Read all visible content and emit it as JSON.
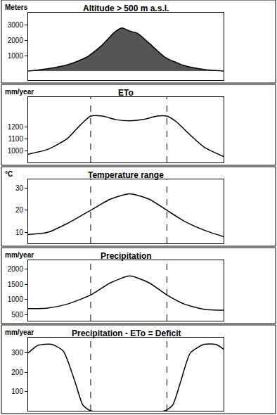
{
  "chart_data": [
    {
      "type": "area",
      "title": "Altitude > 500 m a.s.l.",
      "ylabel": "Meters",
      "x": [
        0,
        10,
        20,
        30,
        38,
        44,
        48,
        52,
        56,
        62,
        70,
        80,
        90,
        100
      ],
      "values": [
        0,
        150,
        400,
        900,
        1700,
        2500,
        2800,
        2600,
        2450,
        1800,
        900,
        350,
        100,
        0
      ],
      "color": "#555555",
      "xlim": [
        0,
        100
      ],
      "xticks": [],
      "ylim": [
        -600,
        3800
      ],
      "yticks": [
        1000,
        2000,
        3000
      ],
      "grid": false,
      "tick_labels": "y"
    },
    {
      "type": "line",
      "title": "ETo",
      "ylabel": "mm/year",
      "x": [
        0,
        10,
        20,
        27,
        32,
        38,
        45,
        52,
        60,
        66,
        71,
        76,
        83,
        90,
        100
      ],
      "values": [
        970,
        1010,
        1100,
        1220,
        1290,
        1290,
        1260,
        1250,
        1265,
        1290,
        1290,
        1240,
        1130,
        1030,
        950
      ],
      "color": "#000000",
      "xlim": [
        0,
        100
      ],
      "xticks": [],
      "ylim": [
        900,
        1450
      ],
      "yticks": [
        1000,
        1100,
        1200
      ],
      "vlines": [
        32,
        71
      ],
      "grid": false,
      "tick_labels": "y"
    },
    {
      "type": "line",
      "title": "Temperature range",
      "ylabel": "°C",
      "x": [
        0,
        10,
        20,
        32,
        42,
        52,
        62,
        71,
        80,
        90,
        100
      ],
      "values": [
        9,
        10,
        14,
        20,
        25,
        27.5,
        25,
        20,
        15,
        11,
        8
      ],
      "color": "#000000",
      "xlim": [
        0,
        100
      ],
      "xticks": [],
      "ylim": [
        5,
        34
      ],
      "yticks": [
        10,
        20,
        30
      ],
      "vlines": [
        32,
        71
      ],
      "grid": false,
      "tick_labels": "y"
    },
    {
      "type": "line",
      "title": "Precipitation",
      "ylabel": "mm/year",
      "x": [
        0,
        10,
        20,
        32,
        42,
        52,
        62,
        71,
        80,
        90,
        100
      ],
      "values": [
        700,
        720,
        850,
        1150,
        1550,
        1780,
        1550,
        1150,
        850,
        680,
        650
      ],
      "color": "#000000",
      "xlim": [
        0,
        100
      ],
      "xticks": [],
      "ylim": [
        300,
        2300
      ],
      "yticks": [
        500,
        1000,
        1500,
        2000
      ],
      "vlines": [
        32,
        71
      ],
      "grid": false,
      "tick_labels": "y"
    },
    {
      "type": "line",
      "title": "Precipitation - ETo = Deficit",
      "ylabel": "mm/year",
      "x": [
        0,
        5,
        12,
        18,
        24,
        28,
        32,
        70,
        74,
        78,
        83,
        90,
        96,
        100
      ],
      "values": [
        300,
        340,
        345,
        310,
        150,
        30,
        0,
        0,
        30,
        150,
        300,
        345,
        345,
        320
      ],
      "color": "#000000",
      "xlim": [
        0,
        100
      ],
      "xticks": [],
      "ylim": [
        0,
        380
      ],
      "yticks": [
        100,
        200,
        300
      ],
      "vlines": [
        32,
        71
      ],
      "grid": false,
      "tick_labels": "y"
    }
  ]
}
